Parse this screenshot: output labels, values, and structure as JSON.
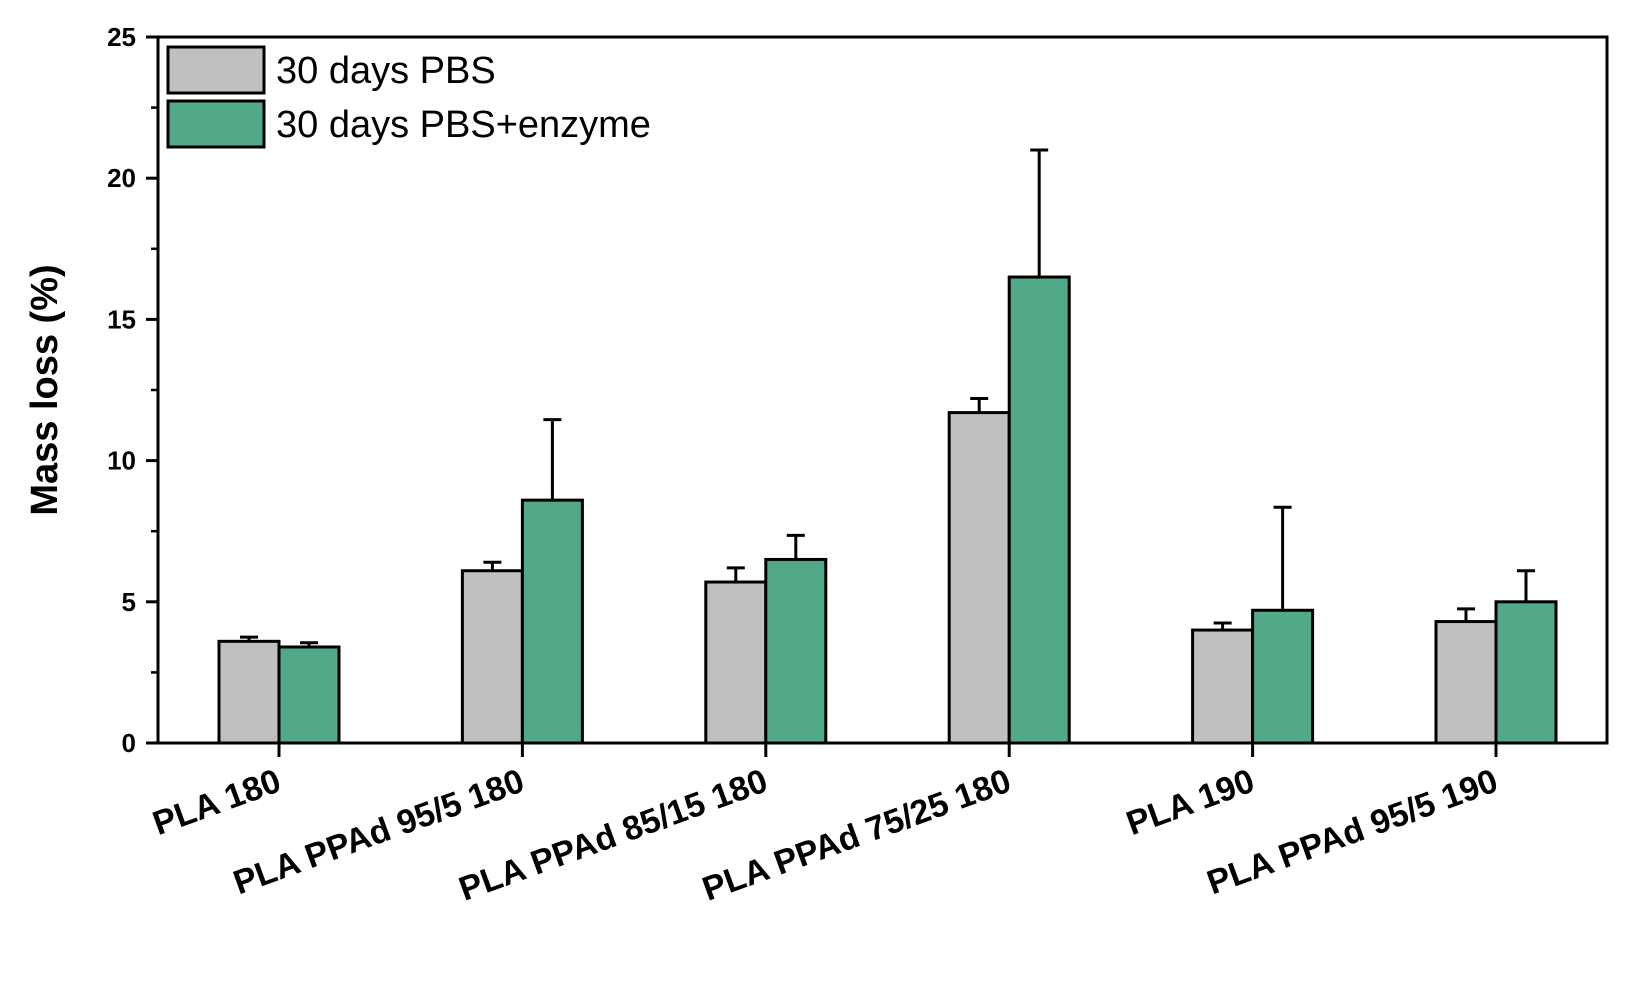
{
  "chart_data": {
    "type": "bar",
    "title": "",
    "xlabel": "",
    "ylabel": "Mass loss (%)",
    "ylim": [
      0,
      25
    ],
    "yticks": [
      0,
      5,
      10,
      15,
      20,
      25
    ],
    "categories": [
      "PLA 180",
      "PLA PPAd 95/5 180",
      "PLA PPAd 85/15 180",
      "PLA PPAd 75/25 180",
      "PLA 190",
      "PLA PPAd 95/5 190"
    ],
    "series": [
      {
        "name": "30 days PBS",
        "color": "#c0c0c0",
        "values": [
          3.6,
          6.1,
          5.7,
          11.7,
          4.0,
          4.3
        ],
        "errors": [
          0.15,
          0.3,
          0.5,
          0.5,
          0.25,
          0.45
        ]
      },
      {
        "name": "30 days PBS+enzyme",
        "color": "#52a987",
        "values": [
          3.4,
          8.6,
          6.5,
          16.5,
          4.7,
          5.0
        ],
        "errors": [
          0.15,
          2.85,
          0.85,
          4.5,
          3.65,
          1.1
        ]
      }
    ],
    "legend_position": "top-left",
    "grid": false
  }
}
